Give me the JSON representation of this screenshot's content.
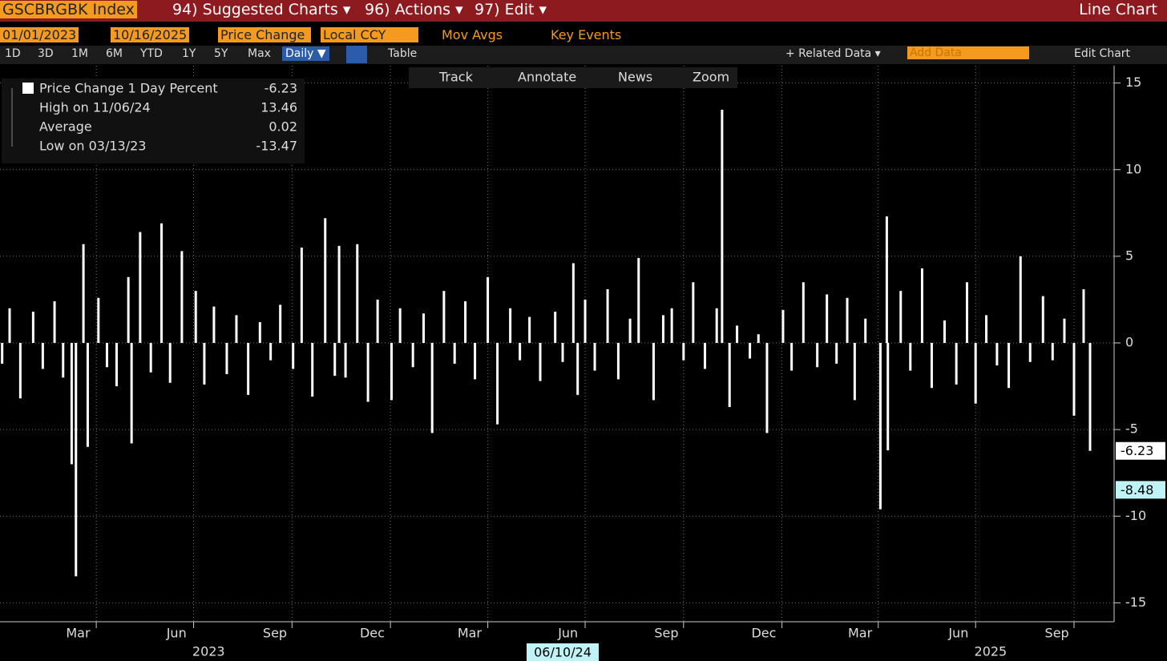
{
  "ui": {
    "security": "GSCBRGBK Index",
    "menu": [
      "94) Suggested Charts ▾",
      "96) Actions ▾",
      "97) Edit ▾"
    ],
    "chart_kind": "Line Chart",
    "start_date": "01/01/2023",
    "end_date": "10/16/2025",
    "field": "Price Change",
    "currency": "Local CCY",
    "toggles": [
      "Mov Avgs",
      "Key Events"
    ],
    "periods": [
      "1D",
      "3D",
      "1M",
      "6M",
      "YTD",
      "1Y",
      "5Y",
      "Max"
    ],
    "frequency": "Daily ▼",
    "table": "Table",
    "related": "+ Related Data ▾",
    "add_data": "Add Data",
    "edit_chart": "Edit Chart",
    "tools": [
      "Track",
      "Annotate",
      "News",
      "Zoom"
    ]
  },
  "chart_data": {
    "type": "bar",
    "color": "#ffffff",
    "legend": [
      {
        "label": "Price Change 1 Day Percent",
        "value": -6.23
      },
      {
        "label": "High on 11/06/24",
        "value": 13.46
      },
      {
        "label": "Average",
        "value": 0.02
      },
      {
        "label": "Low on 03/13/23",
        "value": -13.47
      }
    ],
    "x": [
      "01/03/23",
      "01/10/23",
      "01/20/23",
      "02/01/23",
      "02/10/23",
      "02/21/23",
      "03/01/23",
      "03/09/23",
      "03/13/23",
      "03/20/23",
      "03/24/23",
      "04/03/23",
      "04/11/23",
      "04/20/23",
      "05/01/23",
      "05/04/23",
      "05/12/23",
      "05/22/23",
      "06/01/23",
      "06/09/23",
      "06/20/23",
      "07/03/23",
      "07/11/23",
      "07/20/23",
      "08/01/23",
      "08/10/23",
      "08/21/23",
      "09/01/23",
      "09/11/23",
      "09/20/23",
      "10/02/23",
      "10/10/23",
      "10/20/23",
      "11/01/23",
      "11/10/23",
      "11/14/23",
      "11/20/23",
      "12/01/23",
      "12/11/23",
      "12/20/23",
      "01/02/24",
      "01/10/24",
      "01/22/24",
      "02/01/24",
      "02/09/24",
      "02/20/24",
      "03/01/24",
      "03/11/24",
      "03/20/24",
      "04/01/24",
      "04/10/24",
      "04/22/24",
      "05/01/24",
      "05/10/24",
      "05/20/24",
      "06/03/24",
      "06/10/24",
      "06/20/24",
      "06/24/24",
      "07/01/24",
      "07/10/24",
      "07/22/24",
      "08/01/24",
      "08/12/24",
      "08/20/24",
      "09/03/24",
      "09/12/24",
      "09/20/24",
      "10/01/24",
      "10/10/24",
      "10/21/24",
      "11/01/24",
      "11/06/24",
      "11/13/24",
      "11/20/24",
      "12/02/24",
      "12/10/24",
      "12/18/24",
      "01/02/25",
      "01/10/25",
      "01/21/25",
      "02/03/25",
      "02/12/25",
      "02/21/25",
      "03/03/25",
      "03/10/25",
      "03/20/25",
      "04/03/25",
      "04/09/25",
      "04/10/25",
      "04/22/25",
      "05/01/25",
      "05/12/25",
      "05/21/25",
      "06/02/25",
      "06/13/25",
      "06/23/25",
      "07/01/25",
      "07/11/25",
      "07/21/25",
      "08/01/25",
      "08/12/25",
      "08/21/25",
      "09/02/25",
      "09/11/25",
      "09/22/25",
      "10/01/25",
      "10/10/25",
      "10/16/25"
    ],
    "values": [
      -1.2,
      2.0,
      -3.2,
      1.8,
      -1.5,
      2.4,
      -2.0,
      -7.0,
      -13.47,
      5.7,
      -6.0,
      2.6,
      -1.4,
      -2.5,
      3.8,
      -5.8,
      6.4,
      -1.7,
      6.9,
      -2.3,
      5.3,
      3.0,
      -2.4,
      2.1,
      -1.8,
      1.6,
      -3.0,
      1.2,
      -1.0,
      2.2,
      -1.5,
      5.5,
      -3.1,
      7.2,
      -1.9,
      5.6,
      -2.0,
      5.7,
      -3.4,
      2.5,
      -3.3,
      2.0,
      -1.4,
      1.7,
      -5.2,
      3.0,
      -1.2,
      2.4,
      -2.1,
      3.8,
      -4.7,
      2.0,
      -1.0,
      1.5,
      -2.2,
      1.8,
      -1.1,
      4.6,
      -3.0,
      2.5,
      -1.6,
      3.1,
      -2.1,
      1.4,
      4.9,
      -3.3,
      1.6,
      2.0,
      -1.0,
      3.5,
      -1.5,
      2.0,
      13.46,
      -3.7,
      1.0,
      -0.9,
      0.5,
      -5.2,
      1.9,
      -1.6,
      3.5,
      -1.4,
      2.8,
      -1.2,
      2.6,
      -3.3,
      1.4,
      -9.6,
      7.3,
      -6.2,
      3.0,
      -1.6,
      4.3,
      -2.6,
      1.3,
      -2.4,
      3.5,
      -3.5,
      1.6,
      -1.3,
      -2.6,
      5.0,
      -1.1,
      2.7,
      -1.0,
      1.4,
      -4.2,
      3.1,
      -6.23
    ],
    "xlim": [
      "01/01/23",
      "10/16/25"
    ],
    "xticks": [
      {
        "value": "03/01/23",
        "label": "Mar"
      },
      {
        "value": "06/01/23",
        "label": "Jun"
      },
      {
        "value": "09/01/23",
        "label": "Sep"
      },
      {
        "value": "12/01/23",
        "label": "Dec"
      },
      {
        "value": "03/01/24",
        "label": "Mar"
      },
      {
        "value": "06/01/24",
        "label": "Jun"
      },
      {
        "value": "09/01/24",
        "label": "Sep"
      },
      {
        "value": "12/01/24",
        "label": "Dec"
      },
      {
        "value": "03/01/25",
        "label": "Mar"
      },
      {
        "value": "06/01/25",
        "label": "Jun"
      },
      {
        "value": "09/01/25",
        "label": "Sep"
      }
    ],
    "year_ticks": [
      {
        "value": "07/01/23",
        "label": "2023"
      },
      {
        "value": "07/01/25",
        "label": "2025"
      }
    ],
    "cursor": {
      "value": "06/10/24",
      "label": "06/10/24"
    },
    "ylim": [
      -16,
      16
    ],
    "yticks": [
      15,
      10,
      5,
      0,
      -5,
      -10,
      -15
    ],
    "markers": [
      {
        "value": -6.23,
        "color": "#ffffff"
      },
      {
        "value": -8.48,
        "color": "#bff3f5"
      }
    ],
    "grid": true
  }
}
